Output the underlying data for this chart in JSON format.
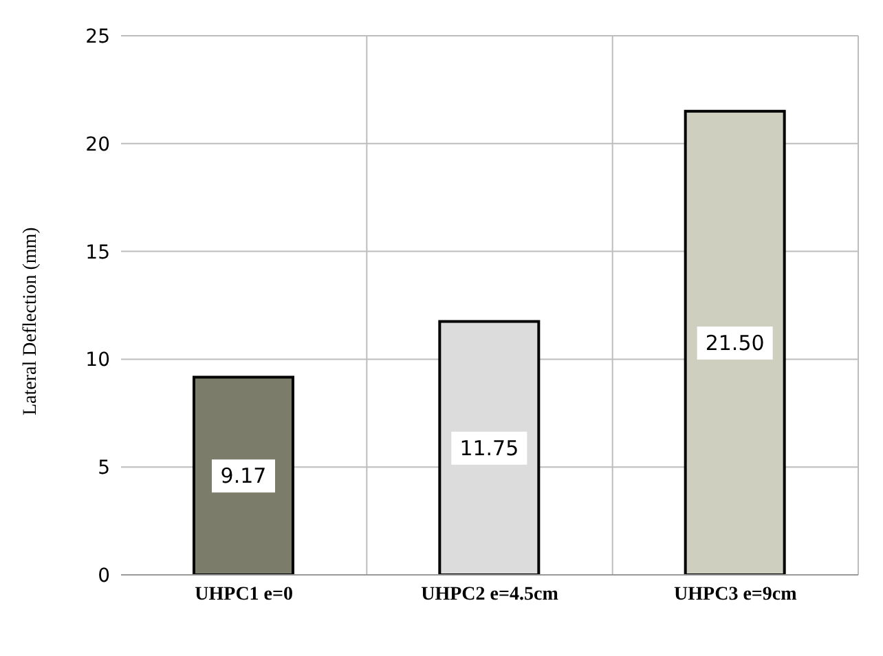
{
  "chart_data": {
    "type": "bar",
    "ylabel": "Lateral Deflection (mm)",
    "categories": [
      "UHPC1 e=0",
      "UHPC2 e=4.5cm",
      "UHPC3  e=9cm"
    ],
    "values": [
      9.17,
      11.75,
      21.5
    ],
    "colors": [
      "#7c7c6a",
      "#dcdcdc",
      "#cfcfc0"
    ],
    "value_labels": [
      "9.17",
      "11.75",
      "21.50"
    ],
    "ylim": [
      0,
      25
    ],
    "yticks": [
      0,
      5,
      10,
      15,
      20,
      25
    ],
    "grid": true
  }
}
